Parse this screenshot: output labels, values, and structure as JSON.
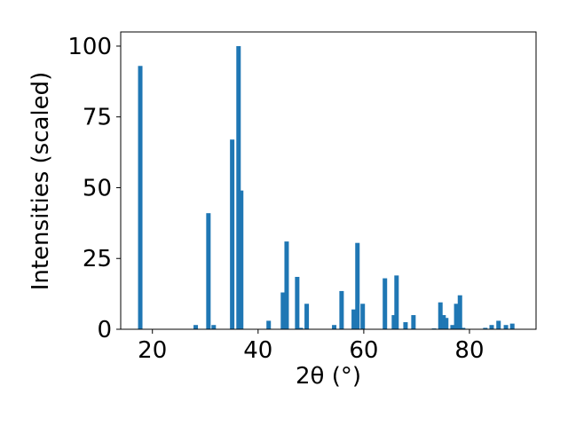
{
  "chart_data": {
    "type": "bar",
    "xlabel": "2θ (°)",
    "ylabel": "Intensities (scaled)",
    "color": "#1f77b4",
    "x": [
      17.7,
      28.2,
      30.6,
      31.6,
      35.1,
      36.3,
      36.8,
      42.0,
      44.7,
      45.4,
      47.4,
      48.1,
      49.2,
      54.4,
      55.8,
      58.1,
      58.8,
      59.8,
      64.0,
      65.7,
      66.2,
      67.9,
      69.4,
      73.3,
      74.5,
      75.1,
      75.6,
      76.8,
      77.5,
      78.2,
      78.8,
      83.0,
      84.2,
      85.5,
      86.9,
      88.1
    ],
    "values": [
      93,
      1.5,
      41,
      1.5,
      67,
      100,
      49,
      3,
      13,
      31,
      18.5,
      0.5,
      9,
      1.5,
      13.5,
      7,
      30.5,
      9,
      18,
      5,
      19,
      2.5,
      5,
      0.3,
      9.5,
      5,
      4,
      1.5,
      9,
      12,
      0.5,
      0.5,
      1.5,
      3,
      1.5,
      2
    ],
    "xlim": [
      14,
      92.6
    ],
    "ylim": [
      0,
      105
    ],
    "xticks": [
      20,
      40,
      60,
      80
    ],
    "yticks": [
      0,
      25,
      50,
      75,
      100
    ]
  }
}
